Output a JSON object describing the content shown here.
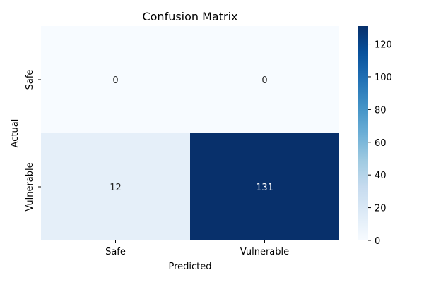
{
  "chart_data": {
    "type": "heatmap",
    "title": "Confusion Matrix",
    "xlabel": "Predicted",
    "ylabel": "Actual",
    "x_categories": [
      "Safe",
      "Vulnerable"
    ],
    "y_categories": [
      "Safe",
      "Vulnerable"
    ],
    "values": [
      [
        0,
        0
      ],
      [
        12,
        131
      ]
    ],
    "colorbar": {
      "min": 0,
      "max": 131,
      "ticks": [
        0,
        20,
        40,
        60,
        80,
        100,
        120
      ],
      "colormap": "Blues"
    },
    "colors": {
      "low": "#f7fbff",
      "high": "#08306b"
    },
    "grid": false
  }
}
